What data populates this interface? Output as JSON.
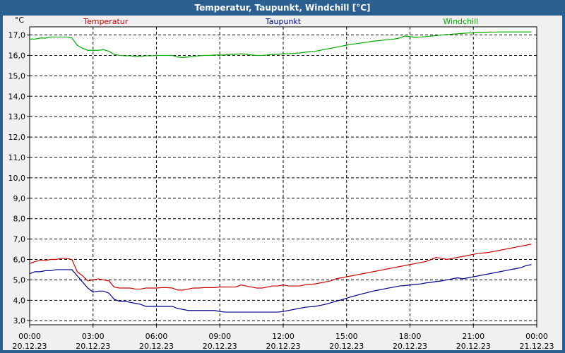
{
  "window_title": "Temperatur, Taupunkt, Windchill [°C]",
  "chart_data": {
    "type": "line",
    "title": "Temperatur, Taupunkt, Windchill [°C]",
    "y_unit": "°C",
    "ylim": [
      2.8,
      17.4
    ],
    "y_ticks": [
      "3,0",
      "4,0",
      "5,0",
      "6,0",
      "7,0",
      "8,0",
      "9,0",
      "10,0",
      "11,0",
      "12,0",
      "13,0",
      "14,0",
      "15,0",
      "16,0",
      "17,0"
    ],
    "y_tick_values": [
      3,
      4,
      5,
      6,
      7,
      8,
      9,
      10,
      11,
      12,
      13,
      14,
      15,
      16,
      17
    ],
    "x_ticks": [
      {
        "time": "00:00",
        "date": "20.12.23"
      },
      {
        "time": "03:00",
        "date": "20.12.23"
      },
      {
        "time": "06:00",
        "date": "20.12.23"
      },
      {
        "time": "09:00",
        "date": "20.12.23"
      },
      {
        "time": "12:00",
        "date": "20.12.23"
      },
      {
        "time": "15:00",
        "date": "20.12.23"
      },
      {
        "time": "18:00",
        "date": "20.12.23"
      },
      {
        "time": "21:00",
        "date": "20.12.23"
      },
      {
        "time": "00:00",
        "date": "21.12.23"
      }
    ],
    "grid": true,
    "x_hours": [
      0,
      0.25,
      0.5,
      0.75,
      1,
      1.25,
      1.5,
      1.75,
      2,
      2.25,
      2.5,
      2.75,
      3,
      3.25,
      3.5,
      3.75,
      4,
      4.25,
      4.5,
      4.75,
      5,
      5.25,
      5.5,
      5.75,
      6,
      6.25,
      6.5,
      6.75,
      7,
      7.25,
      7.5,
      7.75,
      8,
      8.25,
      8.5,
      8.75,
      9,
      9.25,
      9.5,
      9.75,
      10,
      10.25,
      10.5,
      10.75,
      11,
      11.25,
      11.5,
      11.75,
      12,
      12.25,
      12.5,
      12.75,
      13,
      13.25,
      13.5,
      13.75,
      14,
      14.25,
      14.5,
      14.75,
      15,
      15.25,
      15.5,
      15.75,
      16,
      16.25,
      16.5,
      16.75,
      17,
      17.25,
      17.5,
      17.75,
      18,
      18.25,
      18.5,
      18.75,
      19,
      19.25,
      19.5,
      19.75,
      20,
      20.25,
      20.5,
      20.75,
      21,
      21.25,
      21.5,
      21.75,
      22,
      22.25,
      22.5,
      22.75,
      23,
      23.25,
      23.5,
      23.75
    ],
    "series": [
      {
        "name": "Temperatur",
        "color": "#cc0000",
        "values": [
          5.8,
          5.9,
          5.95,
          5.95,
          6.0,
          6.0,
          6.05,
          6.05,
          6.0,
          5.4,
          5.2,
          4.95,
          5.0,
          5.05,
          5.0,
          4.95,
          4.65,
          4.6,
          4.6,
          4.6,
          4.55,
          4.55,
          4.6,
          4.6,
          4.6,
          4.62,
          4.62,
          4.6,
          4.5,
          4.5,
          4.55,
          4.6,
          4.6,
          4.62,
          4.62,
          4.62,
          4.65,
          4.65,
          4.65,
          4.65,
          4.75,
          4.7,
          4.65,
          4.6,
          4.6,
          4.65,
          4.7,
          4.7,
          4.75,
          4.7,
          4.7,
          4.7,
          4.75,
          4.78,
          4.8,
          4.85,
          4.9,
          4.95,
          5.05,
          5.1,
          5.15,
          5.2,
          5.25,
          5.3,
          5.35,
          5.4,
          5.45,
          5.5,
          5.55,
          5.6,
          5.65,
          5.7,
          5.75,
          5.8,
          5.85,
          5.9,
          6.0,
          6.1,
          6.05,
          6.0,
          6.05,
          6.1,
          6.15,
          6.2,
          6.25,
          6.3,
          6.32,
          6.35,
          6.4,
          6.45,
          6.5,
          6.55,
          6.6,
          6.65,
          6.7,
          6.75
        ]
      },
      {
        "name": "Taupunkt",
        "color": "#00008b",
        "values": [
          5.3,
          5.4,
          5.4,
          5.45,
          5.45,
          5.5,
          5.5,
          5.5,
          5.5,
          5.2,
          4.9,
          4.6,
          4.4,
          4.45,
          4.45,
          4.35,
          4.05,
          3.95,
          3.95,
          3.9,
          3.85,
          3.8,
          3.7,
          3.7,
          3.7,
          3.7,
          3.7,
          3.7,
          3.6,
          3.55,
          3.5,
          3.5,
          3.5,
          3.5,
          3.5,
          3.5,
          3.45,
          3.42,
          3.42,
          3.42,
          3.42,
          3.42,
          3.42,
          3.42,
          3.42,
          3.42,
          3.42,
          3.42,
          3.45,
          3.5,
          3.55,
          3.6,
          3.65,
          3.68,
          3.7,
          3.75,
          3.8,
          3.88,
          3.95,
          4.02,
          4.1,
          4.18,
          4.25,
          4.32,
          4.38,
          4.45,
          4.5,
          4.55,
          4.6,
          4.65,
          4.7,
          4.72,
          4.75,
          4.78,
          4.8,
          4.85,
          4.88,
          4.92,
          4.95,
          5.0,
          5.05,
          5.1,
          5.05,
          5.1,
          5.15,
          5.2,
          5.25,
          5.3,
          5.35,
          5.4,
          5.45,
          5.5,
          5.55,
          5.6,
          5.7,
          5.75
        ]
      },
      {
        "name": "Windchill",
        "color": "#00aa00",
        "values": [
          16.8,
          16.8,
          16.85,
          16.85,
          16.9,
          16.9,
          16.9,
          16.9,
          16.85,
          16.5,
          16.35,
          16.25,
          16.25,
          16.25,
          16.28,
          16.2,
          16.05,
          16.0,
          15.98,
          15.98,
          15.95,
          15.95,
          15.98,
          15.98,
          16.0,
          16.0,
          16.0,
          16.0,
          15.92,
          15.9,
          15.92,
          15.95,
          15.98,
          16.0,
          16.0,
          16.02,
          16.02,
          16.02,
          16.05,
          16.05,
          16.08,
          16.05,
          16.02,
          16.0,
          16.0,
          16.02,
          16.05,
          16.05,
          16.08,
          16.08,
          16.1,
          16.12,
          16.15,
          16.18,
          16.2,
          16.25,
          16.3,
          16.35,
          16.4,
          16.45,
          16.5,
          16.55,
          16.58,
          16.62,
          16.65,
          16.7,
          16.72,
          16.75,
          16.78,
          16.8,
          16.85,
          16.95,
          16.92,
          16.88,
          16.9,
          16.92,
          16.95,
          16.97,
          17.0,
          17.02,
          17.04,
          17.06,
          17.08,
          17.1,
          17.1,
          17.12,
          17.12,
          17.14,
          17.14,
          17.15,
          17.15,
          17.15,
          17.15,
          17.15,
          17.15,
          17.15
        ]
      }
    ]
  }
}
